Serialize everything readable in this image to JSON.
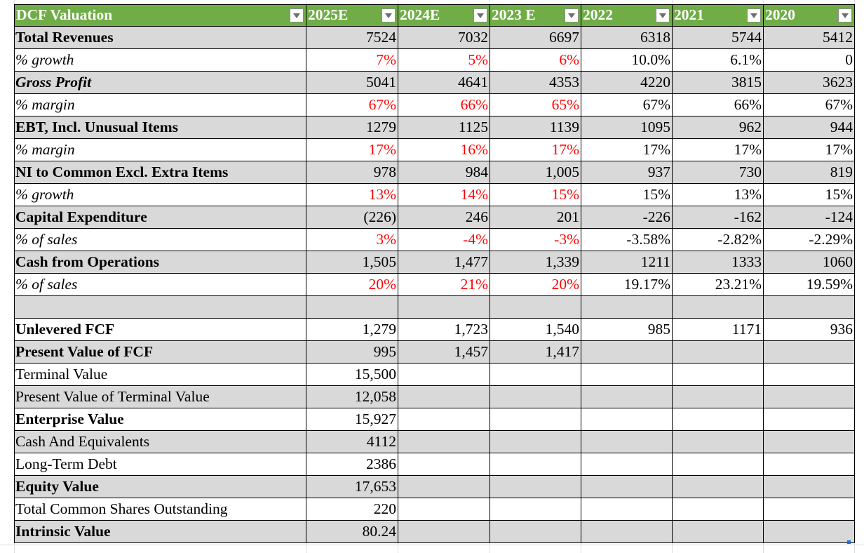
{
  "header": [
    "DCF Valuation",
    "2025E",
    "2024E",
    "2023 E",
    "2022",
    "2021",
    "2020"
  ],
  "rows": [
    {
      "label": "Total Revenues",
      "style": "bold",
      "shade": true,
      "values": [
        "7524",
        "7032",
        "6697",
        "6318",
        "5744",
        "5412"
      ],
      "red": [
        false,
        false,
        false,
        false,
        false,
        false
      ]
    },
    {
      "label": "% growth",
      "style": "ital",
      "shade": false,
      "values": [
        "7%",
        "5%",
        "6%",
        "10.0%",
        "6.1%",
        "0"
      ],
      "red": [
        true,
        true,
        true,
        false,
        false,
        false
      ]
    },
    {
      "label": "Gross Profit",
      "style": "bold ital",
      "shade": true,
      "values": [
        "5041",
        "4641",
        "4353",
        "4220",
        "3815",
        "3623"
      ],
      "red": [
        false,
        false,
        false,
        false,
        false,
        false
      ]
    },
    {
      "label": "% margin",
      "style": "ital",
      "shade": false,
      "values": [
        "67%",
        "66%",
        "65%",
        "67%",
        "66%",
        "67%"
      ],
      "red": [
        true,
        true,
        true,
        false,
        false,
        false
      ]
    },
    {
      "label": "EBT, Incl. Unusual Items",
      "style": "bold",
      "shade": true,
      "values": [
        "1279",
        "1125",
        "1139",
        "1095",
        "962",
        "944"
      ],
      "red": [
        false,
        false,
        false,
        false,
        false,
        false
      ]
    },
    {
      "label": "% margin",
      "style": "ital",
      "shade": false,
      "values": [
        "17%",
        "16%",
        "17%",
        "17%",
        "17%",
        "17%"
      ],
      "red": [
        true,
        true,
        true,
        false,
        false,
        false
      ]
    },
    {
      "label": "NI to Common Excl. Extra Items",
      "style": "bold",
      "shade": true,
      "values": [
        "978",
        "984",
        "1,005",
        "937",
        "730",
        "819"
      ],
      "red": [
        false,
        false,
        false,
        false,
        false,
        false
      ]
    },
    {
      "label": "% growth",
      "style": "ital",
      "shade": false,
      "values": [
        "13%",
        "14%",
        "15%",
        "15%",
        "13%",
        "15%"
      ],
      "red": [
        true,
        true,
        true,
        false,
        false,
        false
      ]
    },
    {
      "label": "Capital Expenditure",
      "style": "bold",
      "shade": true,
      "values": [
        "(226)",
        "246",
        "201",
        "-226",
        "-162",
        "-124"
      ],
      "red": [
        false,
        false,
        false,
        false,
        false,
        false
      ]
    },
    {
      "label": "% of sales",
      "style": "ital",
      "shade": false,
      "values": [
        "3%",
        "-4%",
        "-3%",
        "-3.58%",
        "-2.82%",
        "-2.29%"
      ],
      "red": [
        true,
        true,
        true,
        false,
        false,
        false
      ]
    },
    {
      "label": "Cash from Operations",
      "style": "bold",
      "shade": true,
      "values": [
        "1,505",
        "1,477",
        "1,339",
        "1211",
        "1333",
        "1060"
      ],
      "red": [
        false,
        false,
        false,
        false,
        false,
        false
      ]
    },
    {
      "label": "% of sales",
      "style": "ital",
      "shade": false,
      "values": [
        "20%",
        "21%",
        "20%",
        "19.17%",
        "23.21%",
        "19.59%"
      ],
      "red": [
        true,
        true,
        true,
        false,
        false,
        false
      ]
    },
    {
      "label": "",
      "style": "",
      "shade": true,
      "values": [
        "",
        "",
        "",
        "",
        "",
        ""
      ],
      "red": [
        false,
        false,
        false,
        false,
        false,
        false
      ]
    },
    {
      "label": "Unlevered FCF",
      "style": "bold",
      "shade": false,
      "values": [
        "1,279",
        "1,723",
        "1,540",
        "985",
        "1171",
        "936"
      ],
      "red": [
        false,
        false,
        false,
        false,
        false,
        false
      ]
    },
    {
      "label": "Present Value of FCF",
      "style": "bold",
      "shade": true,
      "values": [
        "995",
        "1,457",
        "1,417",
        "",
        "",
        ""
      ],
      "red": [
        false,
        false,
        false,
        false,
        false,
        false
      ]
    },
    {
      "label": "Terminal Value",
      "style": "",
      "shade": false,
      "values": [
        "15,500",
        "",
        "",
        "",
        "",
        ""
      ],
      "red": [
        false,
        false,
        false,
        false,
        false,
        false
      ]
    },
    {
      "label": "Present Value of Terminal Value",
      "style": "",
      "shade": true,
      "values": [
        "12,058",
        "",
        "",
        "",
        "",
        ""
      ],
      "red": [
        false,
        false,
        false,
        false,
        false,
        false
      ]
    },
    {
      "label": "Enterprise Value",
      "style": "bold",
      "shade": false,
      "values": [
        "15,927",
        "",
        "",
        "",
        "",
        ""
      ],
      "red": [
        false,
        false,
        false,
        false,
        false,
        false
      ]
    },
    {
      "label": "Cash And Equivalents",
      "style": "",
      "shade": true,
      "values": [
        "4112",
        "",
        "",
        "",
        "",
        ""
      ],
      "red": [
        false,
        false,
        false,
        false,
        false,
        false
      ]
    },
    {
      "label": "Long-Term Debt",
      "style": "",
      "shade": false,
      "values": [
        "2386",
        "",
        "",
        "",
        "",
        ""
      ],
      "red": [
        false,
        false,
        false,
        false,
        false,
        false
      ]
    },
    {
      "label": "Equity Value",
      "style": "bold",
      "shade": true,
      "values": [
        "17,653",
        "",
        "",
        "",
        "",
        ""
      ],
      "red": [
        false,
        false,
        false,
        false,
        false,
        false
      ]
    },
    {
      "label": "Total Common Shares Outstanding",
      "style": "",
      "shade": false,
      "values": [
        "220",
        "",
        "",
        "",
        "",
        ""
      ],
      "red": [
        false,
        false,
        false,
        false,
        false,
        false
      ]
    },
    {
      "label": "Intrinsic Value",
      "style": "bold",
      "shade": true,
      "values": [
        "80.24",
        "",
        "",
        "",
        "",
        ""
      ],
      "red": [
        false,
        false,
        false,
        false,
        false,
        false
      ]
    }
  ],
  "colors": {
    "header_bg": "#70ad47",
    "row_shade": "#d9d9d9",
    "estimate_text": "#ff0000"
  }
}
